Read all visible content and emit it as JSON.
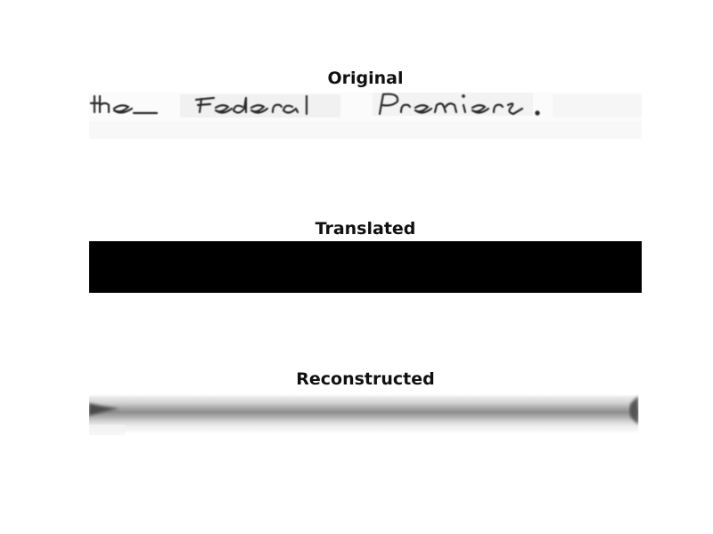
{
  "panels": {
    "original": {
      "title": "Original",
      "image": "handwriting-line-image",
      "handwritten_text": "the Federal Premier."
    },
    "translated": {
      "title": "Translated",
      "image": "solid-black-image",
      "fill": "#000000"
    },
    "reconstructed": {
      "title": "Reconstructed",
      "image": "blurred-gray-line-image"
    }
  },
  "colors": {
    "background": "#ffffff",
    "title_text": "#111111",
    "ink": "#2a2a2a",
    "black": "#000000"
  }
}
